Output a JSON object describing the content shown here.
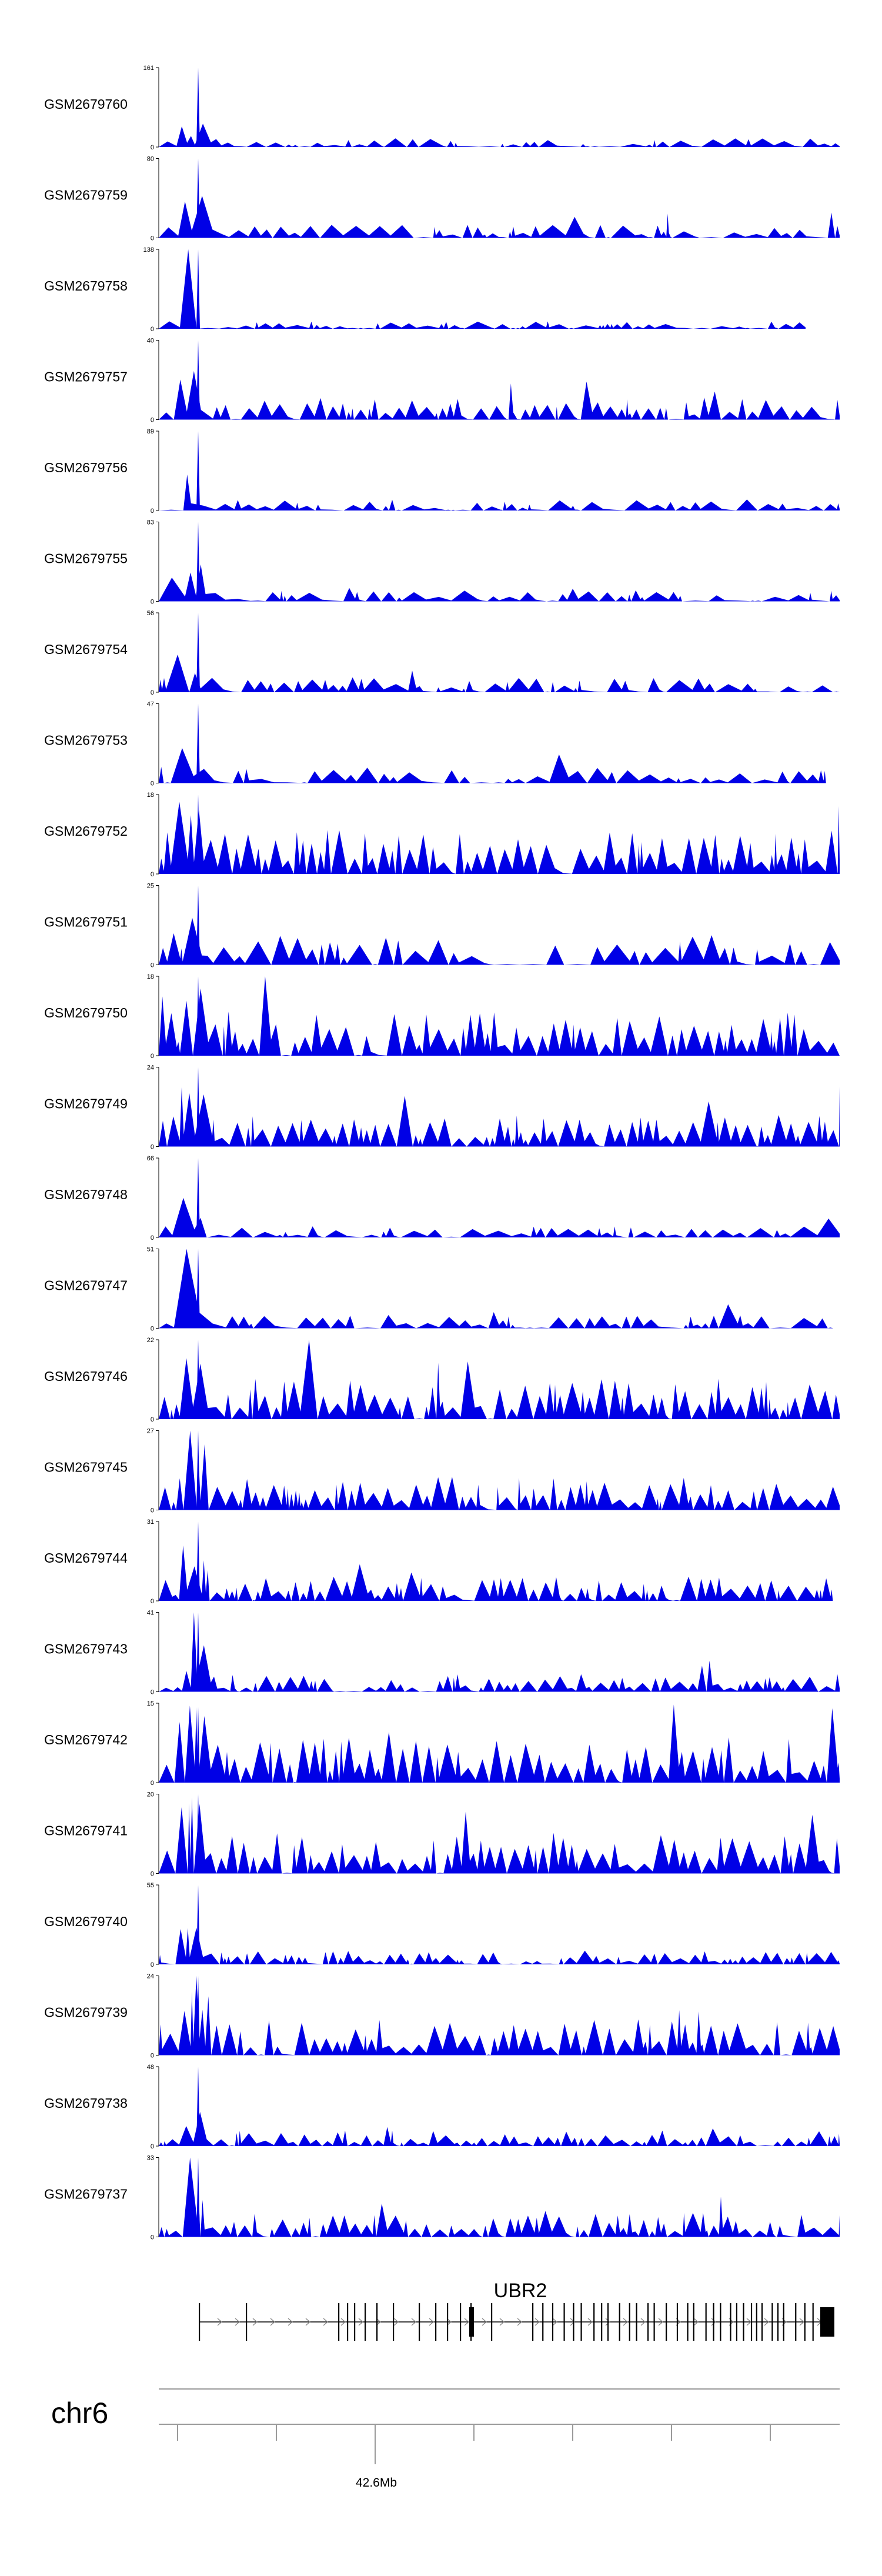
{
  "chart_data": {
    "type": "area",
    "series_color": "#0000e6",
    "tracks": [
      {
        "name": "GSM2679760",
        "ymax": "161",
        "zero": "0",
        "peak": 1.0,
        "bg": 0.08,
        "dense": 0.5,
        "start": 0.0,
        "end": 1.0
      },
      {
        "name": "GSM2679759",
        "ymax": "80",
        "zero": "0",
        "peak": 1.0,
        "bg": 0.12,
        "dense": 0.7,
        "start": 0.0,
        "end": 1.0
      },
      {
        "name": "GSM2679758",
        "ymax": "138",
        "zero": "0",
        "peak": 1.0,
        "bg": 0.07,
        "dense": 0.35,
        "start": 0.0,
        "end": 0.95
      },
      {
        "name": "GSM2679757",
        "ymax": "40",
        "zero": "0",
        "peak": 1.0,
        "bg": 0.2,
        "dense": 0.8,
        "start": 0.0,
        "end": 1.0
      },
      {
        "name": "GSM2679756",
        "ymax": "89",
        "zero": "0",
        "peak": 1.0,
        "bg": 0.1,
        "dense": 0.6,
        "start": 0.0,
        "end": 1.0
      },
      {
        "name": "GSM2679755",
        "ymax": "83",
        "zero": "0",
        "peak": 1.0,
        "bg": 0.1,
        "dense": 0.55,
        "start": 0.0,
        "end": 1.0
      },
      {
        "name": "GSM2679754",
        "ymax": "56",
        "zero": "0",
        "peak": 1.0,
        "bg": 0.14,
        "dense": 0.6,
        "start": 0.0,
        "end": 1.0
      },
      {
        "name": "GSM2679753",
        "ymax": "47",
        "zero": "0",
        "peak": 1.0,
        "bg": 0.15,
        "dense": 0.7,
        "start": 0.0,
        "end": 0.98
      },
      {
        "name": "GSM2679752",
        "ymax": "18",
        "zero": "0",
        "peak": 1.0,
        "bg": 0.4,
        "dense": 0.9,
        "start": 0.0,
        "end": 1.0
      },
      {
        "name": "GSM2679751",
        "ymax": "25",
        "zero": "0",
        "peak": 1.0,
        "bg": 0.3,
        "dense": 0.7,
        "start": 0.0,
        "end": 1.0
      },
      {
        "name": "GSM2679750",
        "ymax": "18",
        "zero": "0",
        "peak": 1.0,
        "bg": 0.4,
        "dense": 0.9,
        "start": 0.0,
        "end": 1.0
      },
      {
        "name": "GSM2679749",
        "ymax": "24",
        "zero": "0",
        "peak": 1.0,
        "bg": 0.28,
        "dense": 0.9,
        "start": 0.0,
        "end": 1.0
      },
      {
        "name": "GSM2679748",
        "ymax": "66",
        "zero": "0",
        "peak": 1.0,
        "bg": 0.1,
        "dense": 0.7,
        "start": 0.0,
        "end": 1.0
      },
      {
        "name": "GSM2679747",
        "ymax": "51",
        "zero": "0",
        "peak": 1.0,
        "bg": 0.12,
        "dense": 0.7,
        "start": 0.0,
        "end": 0.99
      },
      {
        "name": "GSM2679746",
        "ymax": "22",
        "zero": "0",
        "peak": 1.0,
        "bg": 0.38,
        "dense": 0.9,
        "start": 0.0,
        "end": 1.0
      },
      {
        "name": "GSM2679745",
        "ymax": "27",
        "zero": "0",
        "peak": 1.0,
        "bg": 0.3,
        "dense": 0.85,
        "start": 0.0,
        "end": 1.0
      },
      {
        "name": "GSM2679744",
        "ymax": "31",
        "zero": "0",
        "peak": 1.0,
        "bg": 0.22,
        "dense": 0.8,
        "start": 0.0,
        "end": 0.99
      },
      {
        "name": "GSM2679743",
        "ymax": "41",
        "zero": "0",
        "peak": 1.0,
        "bg": 0.16,
        "dense": 0.8,
        "start": 0.0,
        "end": 1.0
      },
      {
        "name": "GSM2679742",
        "ymax": "15",
        "zero": "0",
        "peak": 0.95,
        "bg": 0.42,
        "dense": 0.95,
        "start": 0.0,
        "end": 1.0
      },
      {
        "name": "GSM2679741",
        "ymax": "20",
        "zero": "0",
        "peak": 1.0,
        "bg": 0.38,
        "dense": 0.95,
        "start": 0.0,
        "end": 1.0
      },
      {
        "name": "GSM2679740",
        "ymax": "55",
        "zero": "0",
        "peak": 1.0,
        "bg": 0.12,
        "dense": 0.75,
        "start": 0.0,
        "end": 1.0
      },
      {
        "name": "GSM2679739",
        "ymax": "24",
        "zero": "0",
        "peak": 1.0,
        "bg": 0.32,
        "dense": 0.9,
        "start": 0.0,
        "end": 1.0
      },
      {
        "name": "GSM2679738",
        "ymax": "48",
        "zero": "0",
        "peak": 1.0,
        "bg": 0.14,
        "dense": 0.8,
        "start": 0.0,
        "end": 1.0
      },
      {
        "name": "GSM2679737",
        "ymax": "33",
        "zero": "0",
        "peak": 1.0,
        "bg": 0.22,
        "dense": 0.8,
        "start": 0.0,
        "end": 1.0
      }
    ],
    "gene": {
      "name": "UBR2",
      "strand": "+"
    },
    "chromosome": "chr6",
    "axis": {
      "label": "42.6Mb"
    }
  }
}
